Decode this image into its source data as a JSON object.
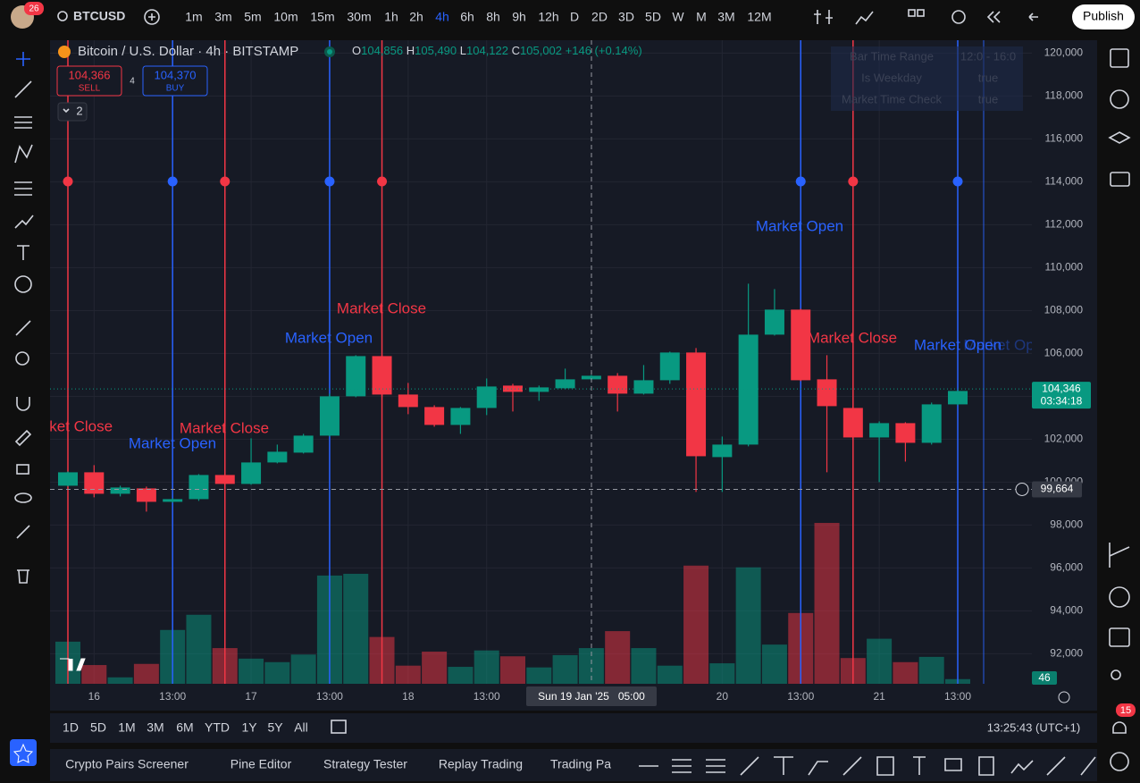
{
  "header": {
    "badge": "26",
    "symbol": "BTCUSD",
    "intervals": [
      "1m",
      "3m",
      "5m",
      "10m",
      "15m",
      "30m",
      "1h",
      "2h",
      "4h",
      "6h",
      "8h",
      "9h",
      "12h",
      "D",
      "2D",
      "3D",
      "5D",
      "W",
      "M",
      "3M",
      "12M"
    ],
    "publish": "Publish"
  },
  "legend": {
    "title": "Bitcoin / U.S. Dollar · 4h · BITSTAMP",
    "o_label": "O",
    "open": "104,856",
    "h_label": "H",
    "high": "105,490",
    "l_label": "L",
    "low": "104,122",
    "c_label": "C",
    "close": "105,002",
    "change": "+146 (+0.14%)",
    "sell_price": "104,366",
    "sell": "SELL",
    "spread": "4",
    "buy_price": "104,370",
    "buy": "BUY",
    "indicators": "2"
  },
  "info_table": {
    "rows": [
      [
        "Bar Time Range",
        "12:0 - 16:0"
      ],
      [
        "Is Weekday",
        "true"
      ],
      [
        "Market Time Check",
        "true"
      ]
    ]
  },
  "chart_data": {
    "type": "candlestick",
    "categories": [
      null,
      "16",
      null,
      null,
      "13:00",
      null,
      null,
      "17",
      null,
      null,
      "13:00",
      null,
      null,
      "18",
      null,
      null,
      "13:00",
      null,
      null,
      null,
      null,
      null,
      null,
      null,
      null,
      "20",
      null,
      null,
      "13:00",
      null,
      null,
      "21",
      null,
      null,
      "13:00"
    ],
    "open": [
      99833,
      100458,
      99458,
      99708,
      99083,
      99208,
      100333,
      99917,
      100917,
      101375,
      102167,
      104000,
      105875,
      104083,
      103500,
      102667,
      103458,
      104500,
      104208,
      104375,
      104792,
      104958,
      104125,
      104750,
      106042,
      101167,
      101750,
      106875,
      108042,
      104792,
      103458,
      102083,
      102750,
      101833,
      103625
    ],
    "high": [
      100500,
      100792,
      99833,
      99792,
      99250,
      100375,
      100417,
      102042,
      101750,
      102250,
      104125,
      105917,
      105917,
      104625,
      103583,
      103500,
      104833,
      104583,
      104500,
      105292,
      105000,
      105083,
      105458,
      106083,
      106250,
      102125,
      109250,
      109000,
      108083,
      105917,
      103542,
      102833,
      102792,
      103708,
      104292
    ],
    "low": [
      99800,
      99292,
      99333,
      98625,
      99042,
      99125,
      99875,
      99875,
      100875,
      101333,
      102125,
      103958,
      103958,
      103167,
      102583,
      102250,
      103125,
      103292,
      103792,
      104333,
      104750,
      103292,
      104083,
      104583,
      99542,
      99542,
      101667,
      106833,
      104708,
      100458,
      101958,
      100000,
      100958,
      101750,
      103583
    ],
    "close": [
      100458,
      99458,
      99750,
      99083,
      99208,
      100333,
      99917,
      100917,
      101417,
      102167,
      104000,
      105875,
      104083,
      103500,
      102667,
      103458,
      104458,
      104208,
      104417,
      104792,
      104958,
      104125,
      104750,
      106042,
      101208,
      101750,
      106875,
      108042,
      104750,
      103542,
      102083,
      102750,
      101833,
      103625,
      104250
    ],
    "volume": [
      72,
      32,
      11,
      34,
      92,
      118,
      61,
      43,
      37,
      50,
      185,
      188,
      80,
      31,
      55,
      29,
      57,
      47,
      28,
      49,
      61,
      90,
      61,
      31,
      202,
      35,
      199,
      67,
      121,
      275,
      44,
      77,
      37,
      46,
      8
    ],
    "up_color": "#089981",
    "down_color": "#f23645",
    "ylim": [
      90600,
      120600
    ],
    "yticks": [
      {
        "value": 92000,
        "label": "92,000"
      },
      {
        "value": 94000,
        "label": "94,000"
      },
      {
        "value": 96000,
        "label": "96,000"
      },
      {
        "value": 98000,
        "label": "98,000"
      },
      {
        "value": 100000,
        "label": "100,000"
      },
      {
        "value": 102000,
        "label": "102,000"
      },
      {
        "value": 104000,
        "label": "104,000"
      },
      {
        "value": 106000,
        "label": "106,000"
      },
      {
        "value": 108000,
        "label": "108,000"
      },
      {
        "value": 110000,
        "label": "110,000"
      },
      {
        "value": 112000,
        "label": "112,000"
      },
      {
        "value": 114000,
        "label": "114,000"
      },
      {
        "value": 116000,
        "label": "116,000"
      },
      {
        "value": 118000,
        "label": "118,000"
      },
      {
        "value": 120000,
        "label": "120,000"
      }
    ],
    "last_price": {
      "value": 104346,
      "label": "104,346",
      "countdown": "03:34:18"
    },
    "crosshair": {
      "value": 99664,
      "label": "99,664",
      "time": "Sun 19 Jan '25   05:00"
    },
    "last_volume": 46,
    "events": [
      "Market Close",
      "Market Open",
      "Market Close",
      "Market Open",
      "Market Close",
      "Market Open",
      "Market Close",
      "Market Open",
      "Market Op"
    ]
  },
  "bottom_bar": {
    "ranges": [
      "1D",
      "5D",
      "1M",
      "3M",
      "6M",
      "YTD",
      "1Y",
      "5Y",
      "All"
    ],
    "clock": "13:25:43 (UTC+1)"
  },
  "tabs": [
    "Crypto Pairs Screener",
    "Pine Editor",
    "Strategy Tester",
    "Replay Trading",
    "Trading Pa"
  ],
  "notification_badge": "15"
}
